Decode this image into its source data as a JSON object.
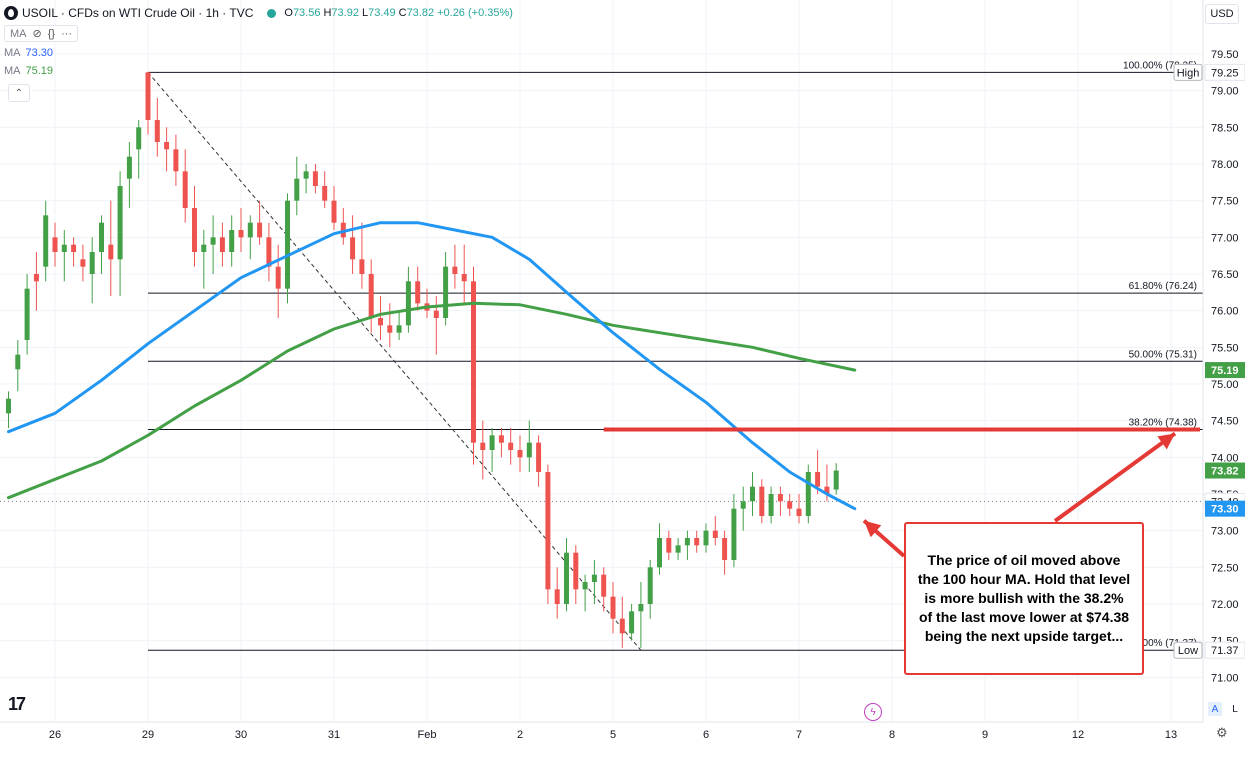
{
  "header": {
    "title": "USOIL · CFDs on WTI Crude Oil · 1h · TVC",
    "ohlc": [
      {
        "key": "O",
        "value": "73.56"
      },
      {
        "key": "H",
        "value": "73.92"
      },
      {
        "key": "L",
        "value": "73.49"
      },
      {
        "key": "C",
        "value": "73.82"
      }
    ],
    "change": "+0.26 (+0.35%)",
    "tools_label": "MA",
    "ma1": {
      "label": "MA",
      "value": "73.30"
    },
    "ma2": {
      "label": "MA",
      "value": "75.19"
    }
  },
  "currency": "USD",
  "icons": {
    "symbol_logo": "oil-drop-icon",
    "eye": "eye-off-icon",
    "code": "code-icon",
    "more": "more-icon",
    "collapse": "chevron-up-icon",
    "logo": "tradingview-logo",
    "flash": "lightning-icon",
    "gear": "gear-icon"
  },
  "scale_buttons": {
    "auto": "A",
    "log": "L"
  },
  "annotation": {
    "text": "The price of oil moved above the 100 hour MA.  Hold that level is more bullish with the 38.2% of the last move lower at $74.38 being the next upside target..."
  },
  "colors": {
    "up": "#26a69a",
    "up_candle": "#43a047",
    "down": "#ef5350",
    "ma100": "#2196f3",
    "ma200": "#43a047",
    "resistance": "#e53935",
    "fib": "#131722"
  },
  "chart_data": {
    "type": "candlestick",
    "title": "USOIL · CFDs on WTI Crude Oil · 1h · TVC",
    "currency": "USD",
    "y_range": [
      70.8,
      80.0
    ],
    "y_ticks": [
      71.0,
      71.5,
      72.0,
      72.5,
      73.0,
      73.5,
      74.0,
      74.5,
      75.0,
      75.5,
      76.0,
      76.5,
      77.0,
      77.5,
      78.0,
      78.5,
      79.0,
      79.5
    ],
    "x_labels": [
      {
        "label": "26",
        "i": 5
      },
      {
        "label": "29",
        "i": 15
      },
      {
        "label": "30",
        "i": 25
      },
      {
        "label": "31",
        "i": 35
      },
      {
        "label": "Feb",
        "i": 45
      },
      {
        "label": "2",
        "i": 55
      },
      {
        "label": "5",
        "i": 65
      },
      {
        "label": "6",
        "i": 75
      },
      {
        "label": "7",
        "i": 85
      },
      {
        "label": "8",
        "i": 95
      },
      {
        "label": "9",
        "i": 105
      },
      {
        "label": "12",
        "i": 115
      },
      {
        "label": "13",
        "i": 125
      }
    ],
    "bars": [
      [
        74.6,
        74.9,
        74.4,
        74.8
      ],
      [
        75.2,
        75.6,
        74.9,
        75.4
      ],
      [
        75.6,
        76.5,
        75.4,
        76.3
      ],
      [
        76.5,
        76.8,
        76.0,
        76.4
      ],
      [
        76.6,
        77.5,
        76.4,
        77.3
      ],
      [
        77.0,
        77.2,
        76.6,
        76.8
      ],
      [
        76.8,
        77.1,
        76.4,
        76.9
      ],
      [
        76.9,
        77.0,
        76.6,
        76.8
      ],
      [
        76.7,
        76.9,
        76.4,
        76.6
      ],
      [
        76.5,
        77.0,
        76.1,
        76.8
      ],
      [
        76.8,
        77.3,
        76.5,
        77.2
      ],
      [
        76.9,
        77.5,
        76.2,
        76.7
      ],
      [
        76.7,
        77.9,
        76.2,
        77.7
      ],
      [
        77.8,
        78.3,
        77.4,
        78.1
      ],
      [
        78.2,
        78.6,
        77.8,
        78.5
      ],
      [
        79.25,
        79.25,
        78.4,
        78.6
      ],
      [
        78.6,
        78.9,
        78.1,
        78.3
      ],
      [
        78.3,
        78.5,
        77.9,
        78.2
      ],
      [
        78.2,
        78.4,
        77.7,
        77.9
      ],
      [
        77.9,
        78.2,
        77.2,
        77.4
      ],
      [
        77.4,
        77.7,
        76.6,
        76.8
      ],
      [
        76.8,
        77.1,
        76.3,
        76.9
      ],
      [
        76.9,
        77.3,
        76.5,
        77.0
      ],
      [
        77.0,
        77.2,
        76.6,
        76.8
      ],
      [
        76.8,
        77.3,
        76.6,
        77.1
      ],
      [
        77.1,
        77.4,
        76.8,
        77.0
      ],
      [
        77.0,
        77.3,
        76.7,
        77.2
      ],
      [
        77.2,
        77.5,
        76.9,
        77.0
      ],
      [
        77.0,
        77.2,
        76.4,
        76.6
      ],
      [
        76.6,
        76.9,
        75.9,
        76.3
      ],
      [
        76.3,
        77.6,
        76.1,
        77.5
      ],
      [
        77.5,
        78.1,
        77.3,
        77.8
      ],
      [
        77.8,
        78.0,
        77.6,
        77.9
      ],
      [
        77.9,
        78.0,
        77.6,
        77.7
      ],
      [
        77.7,
        77.9,
        77.4,
        77.5
      ],
      [
        77.5,
        77.7,
        77.1,
        77.2
      ],
      [
        77.2,
        77.4,
        76.9,
        77.0
      ],
      [
        77.0,
        77.3,
        76.5,
        76.7
      ],
      [
        76.7,
        77.2,
        76.3,
        76.5
      ],
      [
        76.5,
        76.7,
        75.7,
        75.9
      ],
      [
        75.9,
        76.2,
        75.6,
        75.8
      ],
      [
        75.8,
        76.1,
        75.5,
        75.7
      ],
      [
        75.7,
        76.0,
        75.6,
        75.8
      ],
      [
        75.8,
        76.6,
        75.7,
        76.4
      ],
      [
        76.4,
        76.6,
        76.0,
        76.1
      ],
      [
        76.1,
        76.3,
        75.9,
        76.0
      ],
      [
        76.0,
        76.2,
        75.4,
        75.9
      ],
      [
        75.9,
        76.8,
        75.8,
        76.6
      ],
      [
        76.6,
        76.9,
        76.3,
        76.5
      ],
      [
        76.5,
        76.9,
        76.1,
        76.4
      ],
      [
        76.4,
        76.6,
        73.9,
        74.2
      ],
      [
        74.2,
        74.5,
        73.7,
        74.1
      ],
      [
        74.1,
        74.4,
        73.8,
        74.3
      ],
      [
        74.3,
        74.4,
        74.0,
        74.2
      ],
      [
        74.2,
        74.4,
        73.9,
        74.1
      ],
      [
        74.1,
        74.3,
        73.8,
        74.0
      ],
      [
        74.0,
        74.5,
        73.8,
        74.2
      ],
      [
        74.2,
        74.3,
        73.6,
        73.8
      ],
      [
        73.8,
        73.9,
        72.0,
        72.2
      ],
      [
        72.2,
        72.5,
        71.8,
        72.0
      ],
      [
        72.0,
        72.9,
        71.9,
        72.7
      ],
      [
        72.7,
        72.8,
        72.0,
        72.2
      ],
      [
        72.2,
        72.4,
        71.9,
        72.3
      ],
      [
        72.3,
        72.6,
        72.0,
        72.4
      ],
      [
        72.4,
        72.5,
        71.9,
        72.1
      ],
      [
        72.1,
        72.3,
        71.6,
        71.8
      ],
      [
        71.8,
        72.1,
        71.4,
        71.6
      ],
      [
        71.6,
        72.0,
        71.5,
        71.9
      ],
      [
        71.9,
        72.3,
        71.4,
        72.0
      ],
      [
        72.0,
        72.6,
        71.8,
        72.5
      ],
      [
        72.5,
        73.1,
        72.4,
        72.9
      ],
      [
        72.9,
        73.0,
        72.6,
        72.7
      ],
      [
        72.7,
        72.9,
        72.6,
        72.8
      ],
      [
        72.8,
        73.0,
        72.6,
        72.9
      ],
      [
        72.9,
        73.0,
        72.7,
        72.8
      ],
      [
        72.8,
        73.1,
        72.7,
        73.0
      ],
      [
        73.0,
        73.2,
        72.8,
        72.9
      ],
      [
        72.9,
        73.0,
        72.4,
        72.6
      ],
      [
        72.6,
        73.5,
        72.5,
        73.3
      ],
      [
        73.3,
        73.6,
        73.0,
        73.4
      ],
      [
        73.4,
        73.8,
        73.2,
        73.6
      ],
      [
        73.6,
        73.7,
        73.1,
        73.2
      ],
      [
        73.2,
        73.6,
        73.1,
        73.5
      ],
      [
        73.5,
        73.6,
        73.2,
        73.4
      ],
      [
        73.4,
        73.5,
        73.2,
        73.3
      ],
      [
        73.3,
        73.5,
        73.1,
        73.2
      ],
      [
        73.2,
        73.9,
        73.1,
        73.8
      ],
      [
        73.8,
        74.1,
        73.5,
        73.6
      ],
      [
        73.6,
        73.9,
        73.4,
        73.5
      ],
      [
        73.56,
        73.92,
        73.49,
        73.82
      ]
    ],
    "ma100": [
      [
        0,
        74.35
      ],
      [
        5,
        74.6
      ],
      [
        10,
        75.05
      ],
      [
        15,
        75.55
      ],
      [
        20,
        76.0
      ],
      [
        25,
        76.45
      ],
      [
        30,
        76.75
      ],
      [
        35,
        77.05
      ],
      [
        40,
        77.2
      ],
      [
        44,
        77.2
      ],
      [
        48,
        77.1
      ],
      [
        52,
        77.0
      ],
      [
        56,
        76.7
      ],
      [
        60,
        76.25
      ],
      [
        65,
        75.7
      ],
      [
        70,
        75.2
      ],
      [
        75,
        74.75
      ],
      [
        80,
        74.2
      ],
      [
        84,
        73.8
      ],
      [
        88,
        73.5
      ],
      [
        91,
        73.3
      ]
    ],
    "ma200": [
      [
        0,
        73.45
      ],
      [
        5,
        73.7
      ],
      [
        10,
        73.95
      ],
      [
        15,
        74.3
      ],
      [
        20,
        74.7
      ],
      [
        25,
        75.05
      ],
      [
        30,
        75.45
      ],
      [
        35,
        75.75
      ],
      [
        40,
        75.95
      ],
      [
        45,
        76.05
      ],
      [
        50,
        76.1
      ],
      [
        55,
        76.08
      ],
      [
        60,
        75.95
      ],
      [
        65,
        75.8
      ],
      [
        70,
        75.7
      ],
      [
        75,
        75.6
      ],
      [
        80,
        75.5
      ],
      [
        85,
        75.35
      ],
      [
        91,
        75.19
      ]
    ],
    "fib_levels": [
      {
        "label": "100.00% (79.25)",
        "value": 79.25
      },
      {
        "label": "61.80% (76.24)",
        "value": 76.24
      },
      {
        "label": "50.00% (75.31)",
        "value": 75.31
      },
      {
        "label": "38.20% (74.38)",
        "value": 74.38
      },
      {
        "label": "00% (71.37)",
        "value": 71.37
      }
    ],
    "fib_start_i": 15,
    "resistance": {
      "value": 74.38,
      "start_i": 64
    },
    "dashed_trend": {
      "start": [
        15,
        79.25
      ],
      "end": [
        68,
        71.37
      ]
    },
    "current_price_line": 73.4,
    "price_tags": [
      {
        "label": "High",
        "value": 79.25,
        "text": "79.25",
        "style": "plain"
      },
      {
        "label": "",
        "value": 75.19,
        "text": "75.19",
        "style": "ma200"
      },
      {
        "label": "",
        "value": 73.82,
        "text": "73.82",
        "style": "up"
      },
      {
        "label": "",
        "value": 73.4,
        "text": "73.40",
        "style": "plain"
      },
      {
        "label": "",
        "value": 73.3,
        "text": "73.30",
        "style": "ma100"
      },
      {
        "label": "Low",
        "value": 71.37,
        "text": "71.37",
        "style": "plain"
      }
    ],
    "annotation_arrows": [
      {
        "from": "box-top",
        "to_price": 74.38
      },
      {
        "from": "box-left",
        "to_i": 91,
        "to_price": 73.3
      }
    ]
  }
}
